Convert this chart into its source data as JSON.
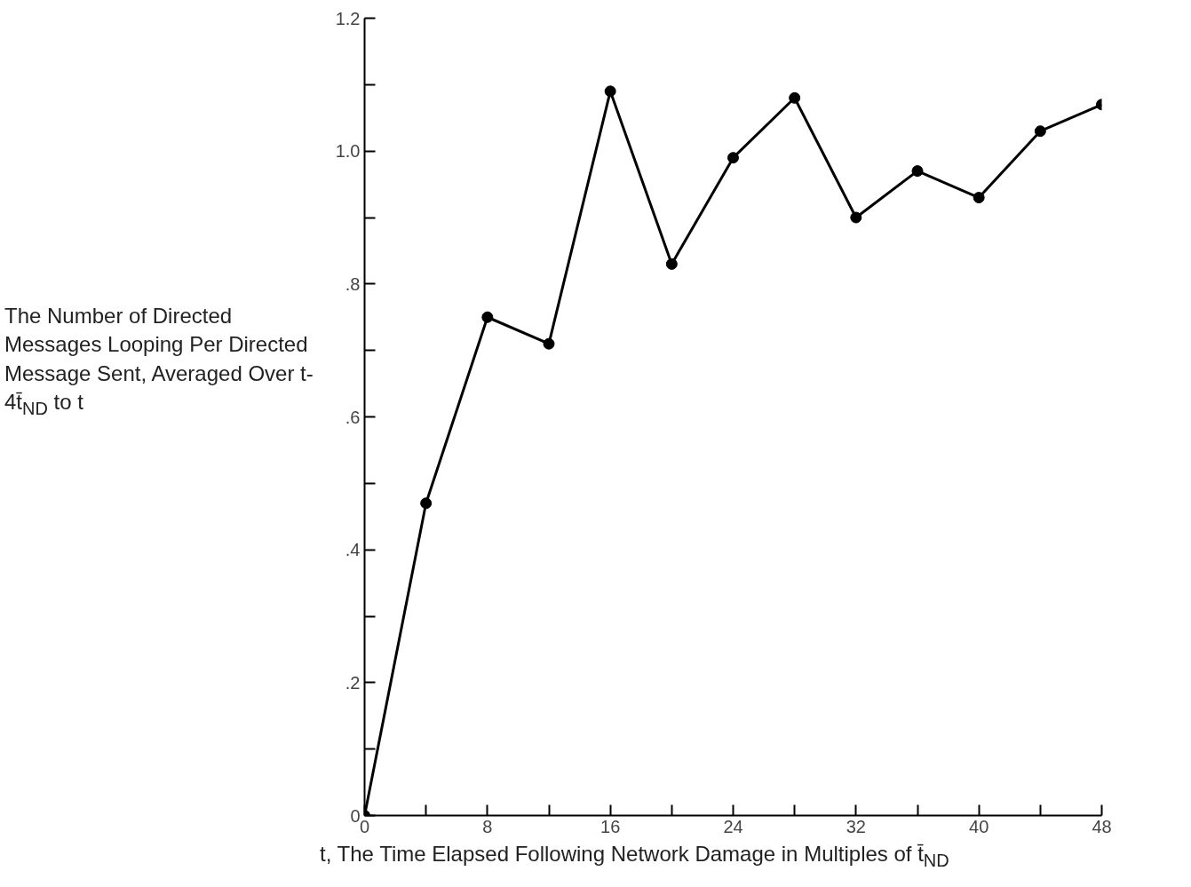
{
  "chart_data": {
    "type": "line",
    "xlabel": "t, The Time Elapsed Following Network Damage in Multiples of t̄$_{ND}$",
    "ylabel": "The Number of Directed Messages Looping Per Directed Message Sent, Averaged Over t-4t̄$_{ND}$ to t",
    "x": [
      0,
      4,
      8,
      12,
      16,
      20,
      24,
      28,
      32,
      36,
      40,
      44,
      48
    ],
    "series": [
      {
        "color": "#000000",
        "values": [
          0,
          0.47,
          0.75,
          0.71,
          1.09,
          0.83,
          0.99,
          1.08,
          0.9,
          0.97,
          0.93,
          1.03,
          1.07
        ]
      }
    ],
    "xlim": [
      0,
      48
    ],
    "ylim": [
      0,
      1.2
    ],
    "xticks": [
      0,
      {
        "value": 4,
        "label": null
      },
      8,
      {
        "value": 12,
        "label": null
      },
      16,
      {
        "value": 20,
        "label": null
      },
      24,
      {
        "value": 28,
        "label": null
      },
      32,
      {
        "value": 36,
        "label": null
      },
      40,
      {
        "value": 44,
        "label": null
      },
      48
    ],
    "yticks": [
      0,
      {
        "value": 0.1,
        "label": null
      },
      {
        "value": 0.2,
        "label": ".2"
      },
      {
        "value": 0.3,
        "label": null
      },
      {
        "value": 0.4,
        "label": ".4"
      },
      {
        "value": 0.5,
        "label": null
      },
      {
        "value": 0.6,
        "label": ".6"
      },
      {
        "value": 0.7,
        "label": null
      },
      {
        "value": 0.8,
        "label": ".8"
      },
      {
        "value": 0.9,
        "label": null
      },
      {
        "value": 1.0,
        "label": "1.0"
      },
      {
        "value": 1.1,
        "label": null
      },
      {
        "value": 1.2,
        "label": "1.2"
      }
    ],
    "grid": false,
    "marker": "circle",
    "line_style": "solid"
  }
}
